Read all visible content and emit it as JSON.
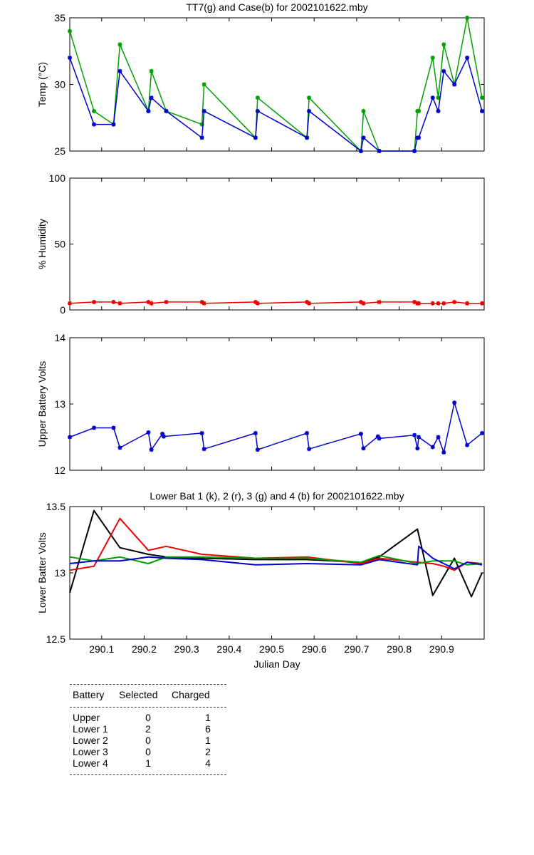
{
  "x_axis": {
    "label": "Julian Day",
    "range": [
      290.025,
      291.0
    ],
    "ticks": [
      290.1,
      290.2,
      290.3,
      290.4,
      290.5,
      290.6,
      290.7,
      290.8,
      290.9
    ],
    "tick_labels": [
      "290.1",
      "290.2",
      "290.3",
      "290.4",
      "290.5",
      "290.6",
      "290.7",
      "290.8",
      "290.9"
    ]
  },
  "chart_data": [
    {
      "type": "line",
      "title": "TT7(g) and Case(b) for 2002101622.mby",
      "ylabel": "Temp  (°C)",
      "ylim": [
        25,
        35
      ],
      "yticks": [
        25,
        30,
        35
      ],
      "ytick_labels": [
        "25",
        "30",
        "35"
      ],
      "markers": true,
      "series": [
        {
          "name": "TT7",
          "color": "#00a000",
          "x": [
            290.025,
            290.082,
            290.128,
            290.143,
            290.21,
            290.217,
            290.252,
            290.336,
            290.341,
            290.462,
            290.467,
            290.583,
            290.588,
            290.71,
            290.716,
            290.753,
            290.836,
            290.843,
            290.846,
            290.879,
            290.892,
            290.905,
            290.93,
            290.96,
            290.995
          ],
          "values": [
            34,
            28,
            27,
            33,
            28,
            31,
            28,
            27,
            30,
            26,
            29,
            26,
            29,
            25,
            28,
            25,
            25,
            28,
            28,
            32,
            29,
            33,
            30,
            35,
            29
          ]
        },
        {
          "name": "Case",
          "color": "#0000cc",
          "x": [
            290.025,
            290.082,
            290.128,
            290.143,
            290.21,
            290.217,
            290.252,
            290.336,
            290.341,
            290.462,
            290.467,
            290.583,
            290.588,
            290.71,
            290.716,
            290.753,
            290.836,
            290.843,
            290.846,
            290.879,
            290.892,
            290.905,
            290.93,
            290.96,
            290.995
          ],
          "values": [
            32,
            27,
            27,
            31,
            28,
            29,
            28,
            26,
            28,
            26,
            28,
            26,
            28,
            25,
            26,
            25,
            25,
            26,
            26,
            29,
            28,
            31,
            30,
            32,
            28
          ]
        }
      ]
    },
    {
      "type": "line",
      "title": "",
      "ylabel": "% Humidity",
      "ylim": [
        0,
        100
      ],
      "yticks": [
        0,
        50,
        100
      ],
      "ytick_labels": [
        "0",
        "50",
        "100"
      ],
      "markers": true,
      "series": [
        {
          "name": "Humidity",
          "color": "#ee0000",
          "x": [
            290.025,
            290.082,
            290.128,
            290.143,
            290.21,
            290.217,
            290.252,
            290.336,
            290.341,
            290.462,
            290.467,
            290.583,
            290.588,
            290.71,
            290.716,
            290.753,
            290.836,
            290.843,
            290.846,
            290.879,
            290.892,
            290.905,
            290.93,
            290.96,
            290.995
          ],
          "values": [
            5,
            6,
            6,
            5,
            6,
            5,
            6,
            6,
            5,
            6,
            5,
            6,
            5,
            6,
            5,
            6,
            6,
            5,
            5,
            5,
            5,
            5,
            6,
            5,
            5
          ]
        }
      ]
    },
    {
      "type": "line",
      "title": "",
      "ylabel": "Upper Battery Volts",
      "ylim": [
        12,
        14
      ],
      "yticks": [
        12,
        13,
        14
      ],
      "ytick_labels": [
        "12",
        "13",
        "14"
      ],
      "markers": true,
      "series": [
        {
          "name": "Upper",
          "color": "#0000cc",
          "x": [
            290.025,
            290.082,
            290.128,
            290.143,
            290.21,
            290.217,
            290.243,
            290.246,
            290.336,
            290.341,
            290.462,
            290.467,
            290.583,
            290.588,
            290.71,
            290.716,
            290.75,
            290.753,
            290.836,
            290.843,
            290.846,
            290.879,
            290.892,
            290.905,
            290.93,
            290.96,
            290.995
          ],
          "values": [
            12.5,
            12.64,
            12.64,
            12.34,
            12.57,
            12.31,
            12.55,
            12.51,
            12.56,
            12.32,
            12.56,
            12.31,
            12.56,
            12.32,
            12.55,
            12.33,
            12.51,
            12.48,
            12.53,
            12.33,
            12.5,
            12.35,
            12.5,
            12.27,
            13.02,
            12.38,
            12.56
          ]
        }
      ]
    },
    {
      "type": "line",
      "title": "Lower Bat 1 (k), 2 (r), 3 (g) and 4 (b) for 2002101622.mby",
      "ylabel": "Lower Batter Volts",
      "xlabel": "Julian Day",
      "ylim": [
        12.5,
        13.5
      ],
      "yticks": [
        12.5,
        13,
        13.5
      ],
      "ytick_labels": [
        "12.5",
        "13",
        "13.5"
      ],
      "markers": false,
      "series": [
        {
          "name": "Lower Bat 1",
          "color": "#000000",
          "x": [
            290.025,
            290.082,
            290.143,
            290.21,
            290.252,
            290.336,
            290.462,
            290.583,
            290.71,
            290.753,
            290.843,
            290.879,
            290.93,
            290.97,
            290.995
          ],
          "values": [
            12.85,
            13.47,
            13.19,
            13.14,
            13.12,
            13.11,
            13.1,
            13.1,
            13.08,
            13.12,
            13.33,
            12.83,
            13.11,
            12.82,
            13.0
          ]
        },
        {
          "name": "Lower Bat 2",
          "color": "#ee0000",
          "x": [
            290.025,
            290.082,
            290.143,
            290.21,
            290.252,
            290.336,
            290.462,
            290.583,
            290.71,
            290.753,
            290.843,
            290.879,
            290.905,
            290.93,
            290.96,
            290.995
          ],
          "values": [
            13.02,
            13.05,
            13.41,
            13.17,
            13.2,
            13.14,
            13.11,
            13.12,
            13.07,
            13.11,
            13.08,
            13.07,
            13.05,
            13.02,
            13.08,
            13.07
          ]
        },
        {
          "name": "Lower Bat 3",
          "color": "#00a000",
          "x": [
            290.025,
            290.082,
            290.143,
            290.21,
            290.252,
            290.336,
            290.462,
            290.583,
            290.71,
            290.753,
            290.843,
            290.879,
            290.905,
            290.93,
            290.96,
            290.995
          ],
          "values": [
            13.12,
            13.09,
            13.12,
            13.07,
            13.12,
            13.12,
            13.11,
            13.11,
            13.08,
            13.13,
            13.07,
            13.09,
            13.09,
            13.09,
            13.06,
            13.07
          ]
        },
        {
          "name": "Lower Bat 4",
          "color": "#0000cc",
          "x": [
            290.025,
            290.082,
            290.143,
            290.21,
            290.252,
            290.336,
            290.462,
            290.583,
            290.71,
            290.753,
            290.843,
            290.846,
            290.879,
            290.905,
            290.93,
            290.96,
            290.995
          ],
          "values": [
            13.07,
            13.09,
            13.09,
            13.12,
            13.11,
            13.1,
            13.06,
            13.07,
            13.06,
            13.1,
            13.06,
            13.2,
            13.11,
            13.07,
            13.03,
            13.08,
            13.06
          ]
        }
      ]
    }
  ],
  "summary_table": {
    "headers": [
      "Battery",
      "Selected",
      "Charged"
    ],
    "rows": [
      [
        "Upper",
        "0",
        "1"
      ],
      [
        "Lower 1",
        "2",
        "6"
      ],
      [
        "Lower 2",
        "0",
        "1"
      ],
      [
        "Lower 3",
        "0",
        "2"
      ],
      [
        "Lower 4",
        "1",
        "4"
      ]
    ]
  }
}
